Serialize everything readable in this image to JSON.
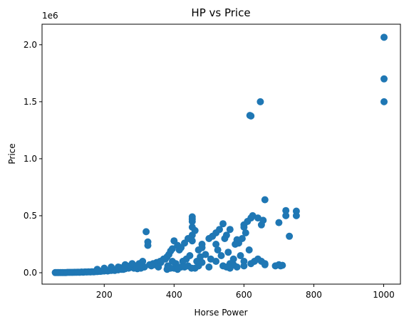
{
  "chart_data": {
    "type": "scatter",
    "title": "HP vs Price",
    "xlabel": "Horse Power",
    "ylabel": "Price",
    "y_offset_label": "1e6",
    "xlim": [
      22,
      1048
    ],
    "ylim": [
      -0.1,
      2.18
    ],
    "x_ticks": [
      200,
      400,
      600,
      800,
      1000
    ],
    "y_ticks": [
      0.0,
      0.5,
      1.0,
      1.5,
      2.0
    ],
    "x_tick_labels": [
      "200",
      "400",
      "600",
      "800",
      "1000"
    ],
    "y_tick_labels": [
      "0.0",
      "0.5",
      "1.0",
      "1.5",
      "2.0"
    ],
    "grid": false,
    "marker_color": "#1f77b4",
    "points": {
      "x": [
        1001,
        1001,
        1001,
        647,
        617,
        620,
        660,
        720,
        720,
        750,
        750,
        730,
        700,
        700,
        690,
        625,
        620,
        610,
        600,
        600,
        640,
        650,
        655,
        605,
        595,
        585,
        580,
        575,
        560,
        550,
        545,
        540,
        530,
        520,
        510,
        500,
        480,
        470,
        460,
        452,
        452,
        452,
        452,
        452,
        452,
        440,
        430,
        420,
        415,
        410,
        400,
        395,
        390,
        385,
        380,
        370,
        360,
        350,
        340,
        330,
        325,
        325,
        320,
        310,
        300,
        290,
        280,
        270,
        260,
        250,
        240,
        230,
        220,
        210,
        200,
        190,
        180,
        170,
        160,
        150,
        140,
        130,
        120,
        110,
        100,
        90,
        80,
        70,
        60,
        705,
        710,
        660,
        650,
        640,
        630,
        615,
        590,
        570,
        555,
        535,
        525,
        505,
        490,
        475,
        465,
        445,
        435,
        425,
        405,
        395,
        382,
        375,
        362,
        345,
        335,
        315,
        305,
        295,
        285,
        275,
        265,
        255,
        245,
        235,
        225,
        215,
        205,
        195,
        185,
        175,
        165,
        155,
        145,
        135,
        125,
        115,
        105,
        95,
        85,
        75,
        65,
        560,
        540,
        520,
        500,
        480,
        460,
        440,
        420,
        400,
        380,
        355,
        620,
        600,
        570,
        550,
        470,
        450,
        430,
        410,
        390,
        240,
        260,
        280,
        300,
        180,
        200,
        220,
        480,
        520,
        660,
        600,
        580,
        560
      ],
      "y": [
        2.065,
        1.7,
        1.5,
        1.5,
        1.38,
        1.375,
        0.64,
        0.545,
        0.5,
        0.54,
        0.5,
        0.32,
        0.44,
        0.07,
        0.06,
        0.5,
        0.48,
        0.45,
        0.42,
        0.4,
        0.48,
        0.42,
        0.46,
        0.35,
        0.3,
        0.26,
        0.29,
        0.25,
        0.38,
        0.33,
        0.3,
        0.43,
        0.38,
        0.35,
        0.32,
        0.3,
        0.25,
        0.2,
        0.37,
        0.49,
        0.47,
        0.45,
        0.4,
        0.33,
        0.28,
        0.3,
        0.26,
        0.22,
        0.2,
        0.24,
        0.28,
        0.21,
        0.19,
        0.16,
        0.14,
        0.12,
        0.1,
        0.09,
        0.08,
        0.07,
        0.27,
        0.24,
        0.36,
        0.1,
        0.08,
        0.06,
        0.05,
        0.04,
        0.035,
        0.03,
        0.025,
        0.02,
        0.02,
        0.015,
        0.015,
        0.012,
        0.01,
        0.008,
        0.007,
        0.006,
        0.005,
        0.004,
        0.004,
        0.003,
        0.003,
        0.002,
        0.002,
        0.002,
        0.001,
        0.06,
        0.065,
        0.08,
        0.1,
        0.12,
        0.1,
        0.2,
        0.15,
        0.12,
        0.18,
        0.15,
        0.2,
        0.12,
        0.16,
        0.14,
        0.1,
        0.15,
        0.12,
        0.1,
        0.08,
        0.1,
        0.06,
        0.12,
        0.09,
        0.07,
        0.06,
        0.05,
        0.04,
        0.035,
        0.04,
        0.05,
        0.06,
        0.03,
        0.045,
        0.03,
        0.025,
        0.02,
        0.018,
        0.015,
        0.012,
        0.01,
        0.009,
        0.008,
        0.007,
        0.006,
        0.005,
        0.004,
        0.003,
        0.003,
        0.002,
        0.002,
        0.001,
        0.08,
        0.06,
        0.1,
        0.05,
        0.09,
        0.04,
        0.06,
        0.05,
        0.04,
        0.03,
        0.05,
        0.08,
        0.1,
        0.07,
        0.05,
        0.06,
        0.04,
        0.05,
        0.03,
        0.04,
        0.05,
        0.07,
        0.08,
        0.06,
        0.03,
        0.04,
        0.05,
        0.22,
        0.25,
        0.07,
        0.06,
        0.05,
        0.04
      ]
    }
  }
}
